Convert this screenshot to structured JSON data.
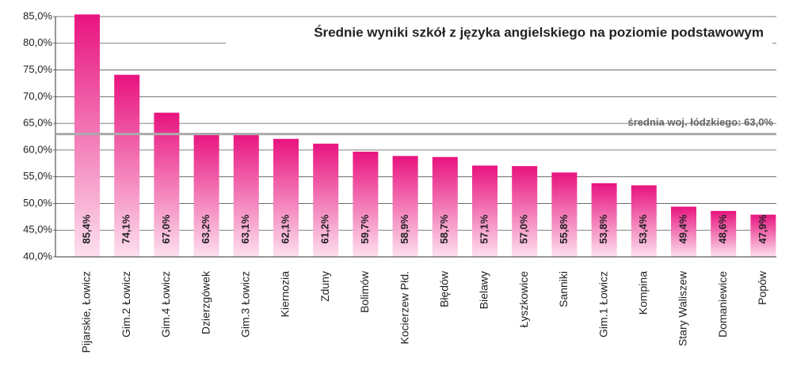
{
  "chart_data": {
    "type": "bar",
    "title": "Średnie wyniki szkół z języka angielskiego na poziomie podstawowym",
    "categories": [
      "Pijarskie, Łowicz",
      "Gim.2 Łowicz",
      "Gim.4 Łowicz",
      "Dzierzgówek",
      "Gim.3 Łowicz",
      "Kiernozia",
      "Zduny",
      "Bolimów",
      "Kocierzew Płd.",
      "Błędów",
      "Bielawy",
      "Łyszkowice",
      "Sanniki",
      "Gim.1 Łowicz",
      "Kompina",
      "Stary Waliszew",
      "Domaniewice",
      "Popów"
    ],
    "values": [
      85.4,
      74.1,
      67.0,
      63.2,
      63.1,
      62.1,
      61.2,
      59.7,
      58.9,
      58.7,
      57.1,
      57.0,
      55.8,
      53.8,
      53.4,
      49.4,
      48.6,
      47.9
    ],
    "value_labels": [
      "85,4%",
      "74,1%",
      "67,0%",
      "63,2%",
      "63,1%",
      "62,1%",
      "61,2%",
      "59,7%",
      "58,9%",
      "58,7%",
      "57,1%",
      "57,0%",
      "55,8%",
      "53,8%",
      "53,4%",
      "49,4%",
      "48,6%",
      "47,9%"
    ],
    "color": "#e8137f",
    "ylim": [
      40,
      85
    ],
    "yticks": [
      {
        "value": 40,
        "label": "40,0%"
      },
      {
        "value": 45,
        "label": "45,0%"
      },
      {
        "value": 50,
        "label": "50,0%"
      },
      {
        "value": 55,
        "label": "55,0%"
      },
      {
        "value": 60,
        "label": "60,0%"
      },
      {
        "value": 65,
        "label": "65,0%"
      },
      {
        "value": 70,
        "label": "70,0%"
      },
      {
        "value": 75,
        "label": "75,0%"
      },
      {
        "value": 80,
        "label": "80,0%"
      },
      {
        "value": 85,
        "label": "85,0%"
      }
    ],
    "grid": true,
    "reference_line": {
      "value": 63.0,
      "label": "średnia woj. łódzkiego: 63,0%"
    }
  }
}
